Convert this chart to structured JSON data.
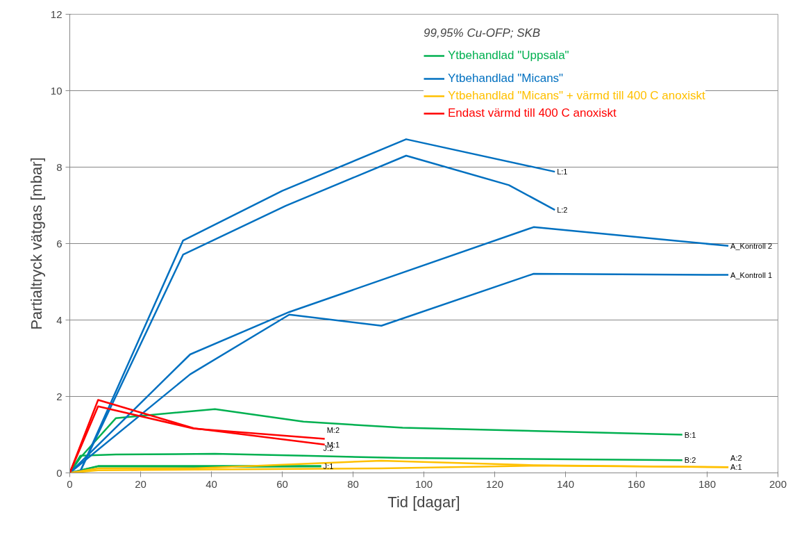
{
  "chart_data": {
    "type": "line",
    "xlabel": "Tid [dagar]",
    "ylabel": "Partialtryck vätgas [mbar]",
    "legend_title": "99,95% Cu-OFP; SKB",
    "xlim": [
      0,
      200
    ],
    "xticks": [
      0,
      20,
      40,
      60,
      80,
      100,
      120,
      140,
      160,
      180,
      200
    ],
    "ylim": [
      0,
      12
    ],
    "yticks": [
      0,
      2,
      4,
      6,
      8,
      10,
      12
    ],
    "grid": "y",
    "legend": "top right",
    "marker": "none",
    "line_style": "solid",
    "series": [
      {
        "name": "Ytbehandlad \"Uppsala\"",
        "color": "#00b050",
        "x": [
          0,
          3,
          13,
          41,
          66,
          94,
          173
        ],
        "values": [
          0,
          0.4,
          1.43,
          1.67,
          1.34,
          1.18,
          1.0
        ]
      },
      {
        "color": "#00b050",
        "x": [
          0,
          3,
          13,
          41,
          66,
          94,
          173
        ],
        "values": [
          0,
          0.45,
          0.48,
          0.5,
          0.45,
          0.39,
          0.33
        ]
      },
      {
        "color": "#00b050",
        "x": [
          0,
          8,
          41,
          71
        ],
        "values": [
          0,
          0.18,
          0.18,
          0.18
        ]
      },
      {
        "color": "#00b050",
        "x": [
          0,
          8,
          41,
          71
        ],
        "values": [
          0,
          0.17,
          0.16,
          0.17
        ]
      },
      {
        "name": "Ytbehandlad \"Micans\"",
        "color": "#0070c0",
        "x": [
          0,
          3,
          32,
          60,
          95,
          137
        ],
        "values": [
          0,
          0.05,
          6.08,
          7.38,
          8.73,
          7.88
        ]
      },
      {
        "color": "#0070c0",
        "x": [
          0,
          3,
          32,
          61,
          95,
          124,
          137
        ],
        "values": [
          0,
          0.05,
          5.71,
          6.99,
          8.3,
          7.53,
          6.88
        ]
      },
      {
        "color": "#0070c0",
        "x": [
          0,
          34,
          62,
          131,
          186
        ],
        "values": [
          0,
          3.1,
          4.21,
          6.43,
          5.94
        ]
      },
      {
        "color": "#0070c0",
        "x": [
          0,
          34,
          62,
          88,
          131,
          186
        ],
        "values": [
          0,
          2.58,
          4.14,
          3.85,
          5.21,
          5.18
        ]
      },
      {
        "name": "Ytbehandlad \"Micans\" + värmd till 400 C anoxiskt",
        "color": "#ffc000",
        "x": [
          0,
          8,
          35,
          88,
          131,
          186
        ],
        "values": [
          0,
          0.12,
          0.12,
          0.32,
          0.2,
          0.15
        ]
      },
      {
        "color": "#ffc000",
        "x": [
          0,
          8,
          41,
          88,
          131,
          186
        ],
        "values": [
          0,
          0.07,
          0.09,
          0.12,
          0.19,
          0.15
        ]
      },
      {
        "name": "Endast värmd till 400 C anoxiskt",
        "color": "#ff0000",
        "x": [
          0,
          8,
          35,
          72
        ],
        "values": [
          0,
          1.91,
          1.17,
          0.74
        ]
      },
      {
        "color": "#ff0000",
        "x": [
          0,
          8,
          35,
          72
        ],
        "values": [
          0,
          1.74,
          1.16,
          0.89
        ]
      }
    ],
    "annotations": [
      {
        "text": "B:1",
        "x": 173,
        "y": 1.0
      },
      {
        "text": "B:2",
        "x": 173,
        "y": 0.33
      },
      {
        "text": "J:1",
        "x": 71,
        "y": 0.18
      },
      {
        "text": "J:2",
        "x": 71,
        "y": 0.17
      },
      {
        "text": "L:1",
        "x": 137,
        "y": 7.88
      },
      {
        "text": "L:2",
        "x": 137,
        "y": 6.88
      },
      {
        "text": "A_Kontroll 2",
        "x": 186,
        "y": 5.94
      },
      {
        "text": "A_Kontroll 1",
        "x": 186,
        "y": 5.18
      },
      {
        "text": "A:1",
        "x": 186,
        "y": 0.15
      },
      {
        "text": "A:2",
        "x": 186,
        "y": 0.15
      },
      {
        "text": "M:1",
        "x": 72,
        "y": 0.74
      },
      {
        "text": "M:2",
        "x": 72,
        "y": 0.89
      }
    ]
  }
}
